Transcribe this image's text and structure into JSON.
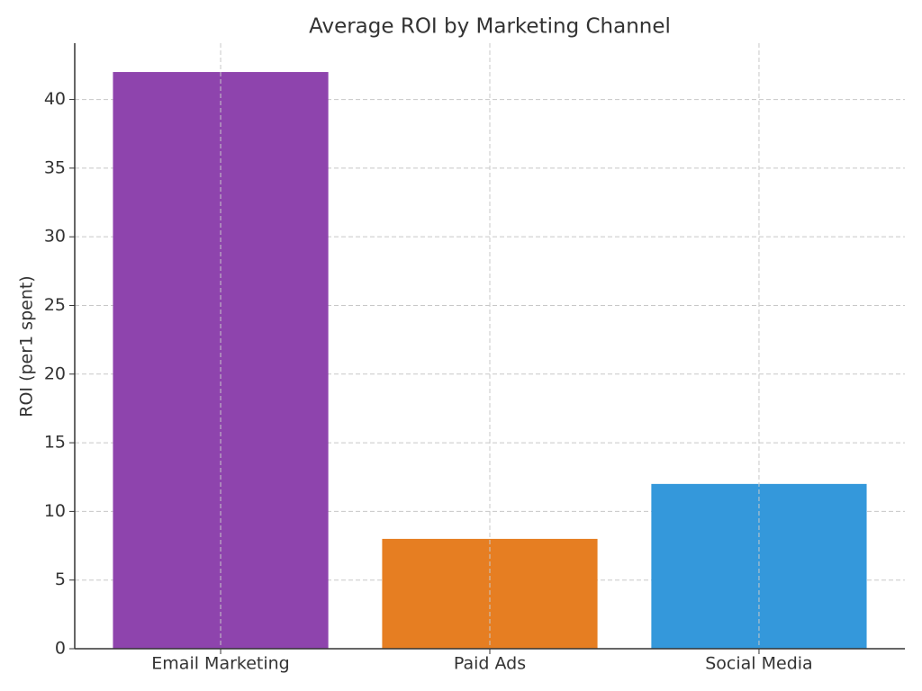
{
  "chart_data": {
    "type": "bar",
    "title": "Average ROI by Marketing Channel",
    "y_label": "ROI (per1 spent)",
    "categories": [
      "Email Marketing",
      "Paid Ads",
      "Social Media"
    ],
    "values": [
      42,
      8,
      12
    ],
    "colors": [
      "#8e44ad",
      "#e67e22",
      "#3498db"
    ],
    "ylim": [
      0,
      44.1
    ],
    "yticks": [
      0,
      5,
      10,
      15,
      20,
      25,
      30,
      35,
      40
    ],
    "grid": true
  }
}
